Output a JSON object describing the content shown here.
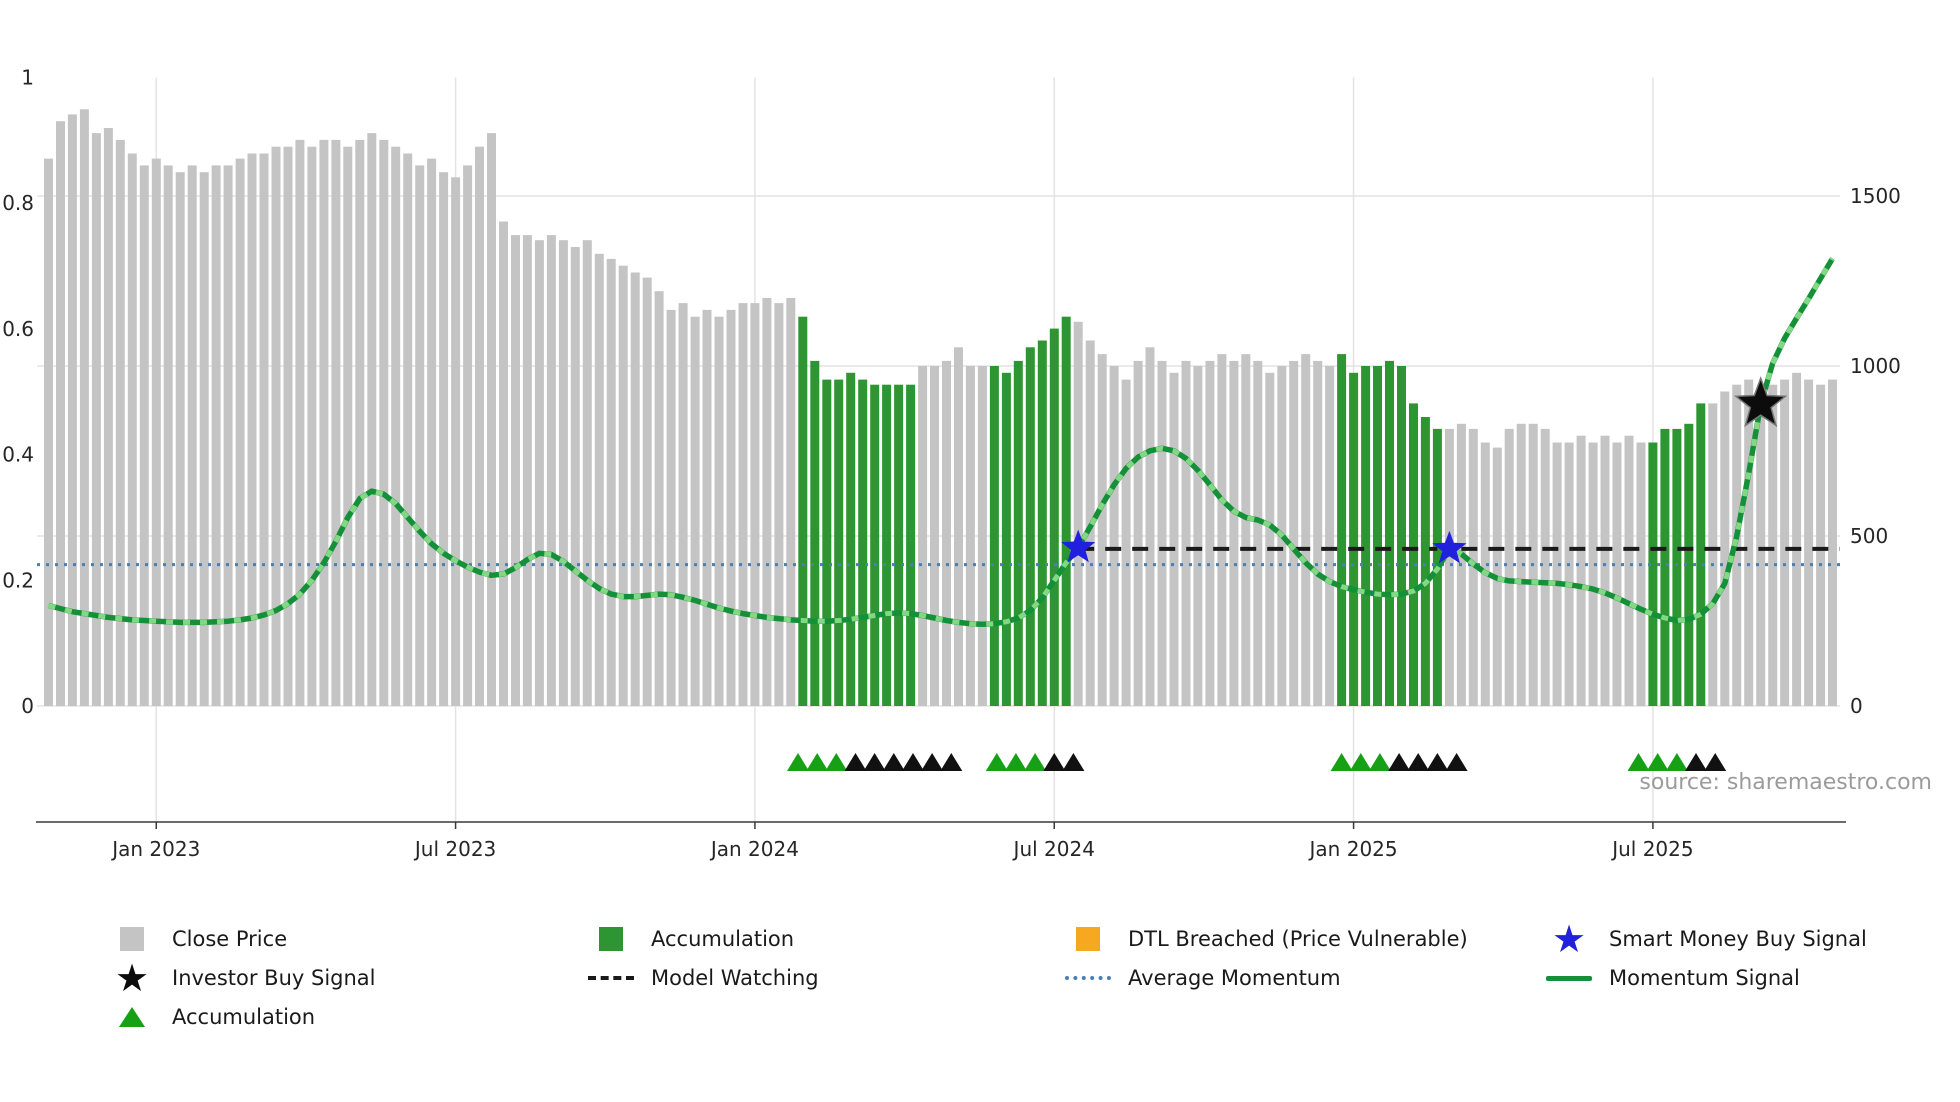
{
  "meta": {
    "source_credit": "source: sharemaestro.com"
  },
  "colors": {
    "bar_gray": "#c4c4c4",
    "accum_green": "#2d9632",
    "momentum_green": "#149039",
    "momentum_dash": "#84d884",
    "avg_blue": "#4a7fb5",
    "watch_black": "#1a1a1a",
    "star_blue": "#2121dd",
    "star_black": "#0c0c0c",
    "dtl_orange": "#f6a821",
    "marker_green": "#16a016",
    "marker_black": "#111111",
    "grid": "#e3e3e3",
    "axis_line": "#3a3a3a",
    "axis_text": "#262626",
    "source_gray": "#9b9b9b"
  },
  "chart_data": {
    "type": "bar+line",
    "n_points": 150,
    "x_ticks": [
      {
        "index": 9,
        "label": "Jan 2023"
      },
      {
        "index": 34,
        "label": "Jul 2023"
      },
      {
        "index": 59,
        "label": "Jan 2024"
      },
      {
        "index": 84,
        "label": "Jul 2024"
      },
      {
        "index": 109,
        "label": "Jan 2025"
      },
      {
        "index": 134,
        "label": "Jul 2025"
      }
    ],
    "left_axis": {
      "range": [
        0,
        1
      ],
      "ticks": [
        {
          "value": 0,
          "label": "0"
        },
        {
          "value": 0.2,
          "label": "0.2"
        },
        {
          "value": 0.4,
          "label": "0.4"
        },
        {
          "value": 0.6,
          "label": "0.6"
        },
        {
          "value": 0.8,
          "label": "0.8"
        },
        {
          "value": 1,
          "label": "1"
        }
      ]
    },
    "right_axis": {
      "range": [
        0,
        1870
      ],
      "ticks": [
        {
          "value": 0,
          "label": "0"
        },
        {
          "value": 500,
          "label": "500"
        },
        {
          "value": 1000,
          "label": "1000"
        },
        {
          "value": 1500,
          "label": "1500"
        }
      ]
    },
    "bars": {
      "name": "Close Price",
      "axis": "right",
      "values": [
        1610,
        1720,
        1740,
        1755,
        1685,
        1700,
        1665,
        1625,
        1590,
        1610,
        1590,
        1570,
        1590,
        1570,
        1590,
        1590,
        1610,
        1625,
        1625,
        1645,
        1645,
        1665,
        1645,
        1665,
        1665,
        1645,
        1665,
        1685,
        1665,
        1645,
        1625,
        1590,
        1610,
        1570,
        1555,
        1590,
        1645,
        1685,
        1425,
        1385,
        1385,
        1370,
        1385,
        1370,
        1350,
        1370,
        1330,
        1315,
        1295,
        1275,
        1260,
        1220,
        1165,
        1185,
        1145,
        1165,
        1145,
        1165,
        1185,
        1185,
        1200,
        1185,
        1200,
        1145,
        1015,
        960,
        960,
        980,
        960,
        945,
        945,
        945,
        945,
        1000,
        1000,
        1015,
        1055,
        1000,
        1000,
        1000,
        980,
        1015,
        1055,
        1075,
        1110,
        1145,
        1130,
        1075,
        1035,
        1000,
        960,
        1015,
        1055,
        1015,
        980,
        1015,
        1000,
        1015,
        1035,
        1015,
        1035,
        1015,
        980,
        1000,
        1015,
        1035,
        1015,
        1000,
        1035,
        980,
        1000,
        1000,
        1015,
        1000,
        890,
        850,
        815,
        815,
        830,
        815,
        775,
        760,
        815,
        830,
        830,
        815,
        775,
        775,
        795,
        775,
        795,
        775,
        795,
        775,
        775,
        815,
        815,
        830,
        890,
        890,
        925,
        945,
        960,
        925,
        945,
        960,
        980,
        960,
        945,
        960
      ]
    },
    "accumulation_ranges": [
      [
        63,
        72
      ],
      [
        79,
        85
      ],
      [
        108,
        116
      ],
      [
        134,
        138
      ]
    ],
    "momentum": {
      "name": "Momentum Signal",
      "axis": "left",
      "values": [
        0.16,
        0.155,
        0.15,
        0.147,
        0.144,
        0.141,
        0.139,
        0.137,
        0.136,
        0.135,
        0.134,
        0.133,
        0.133,
        0.133,
        0.134,
        0.135,
        0.137,
        0.14,
        0.145,
        0.152,
        0.163,
        0.178,
        0.2,
        0.228,
        0.262,
        0.3,
        0.33,
        0.342,
        0.337,
        0.322,
        0.3,
        0.278,
        0.258,
        0.243,
        0.231,
        0.221,
        0.213,
        0.208,
        0.21,
        0.22,
        0.233,
        0.243,
        0.241,
        0.23,
        0.215,
        0.2,
        0.187,
        0.178,
        0.174,
        0.174,
        0.176,
        0.178,
        0.177,
        0.173,
        0.168,
        0.162,
        0.156,
        0.151,
        0.147,
        0.144,
        0.141,
        0.139,
        0.137,
        0.136,
        0.135,
        0.135,
        0.136,
        0.138,
        0.141,
        0.144,
        0.147,
        0.148,
        0.147,
        0.144,
        0.14,
        0.136,
        0.133,
        0.131,
        0.13,
        0.131,
        0.134,
        0.14,
        0.152,
        0.172,
        0.2,
        0.228,
        0.252,
        0.285,
        0.32,
        0.352,
        0.378,
        0.396,
        0.406,
        0.41,
        0.406,
        0.394,
        0.375,
        0.352,
        0.328,
        0.31,
        0.3,
        0.296,
        0.288,
        0.272,
        0.25,
        0.228,
        0.21,
        0.198,
        0.19,
        0.185,
        0.181,
        0.178,
        0.177,
        0.178,
        0.183,
        0.195,
        0.218,
        0.25,
        0.242,
        0.226,
        0.212,
        0.203,
        0.199,
        0.198,
        0.197,
        0.196,
        0.195,
        0.193,
        0.19,
        0.186,
        0.18,
        0.172,
        0.163,
        0.154,
        0.146,
        0.14,
        0.136,
        0.138,
        0.146,
        0.163,
        0.195,
        0.27,
        0.37,
        0.48,
        0.545,
        0.585,
        0.617,
        0.648,
        0.68,
        0.712
      ]
    },
    "average_momentum": {
      "name": "Average Momentum",
      "value": 0.225
    },
    "model_watching": {
      "name": "Model Watching",
      "level": 0.25,
      "segments": [
        [
          86,
          116
        ],
        [
          118,
          149.6
        ]
      ]
    },
    "smart_money_signals": [
      {
        "index": 86,
        "value": 0.252
      },
      {
        "index": 117,
        "value": 0.25
      }
    ],
    "investor_buy_signal": {
      "index": 143,
      "value": 0.48
    },
    "accumulation_markers": [
      62.6,
      64.2,
      65.8,
      79.2,
      80.8,
      82.4,
      108,
      109.6,
      111.2,
      132.8,
      134.4,
      136
    ],
    "watching_markers": [
      67.4,
      69,
      70.6,
      72.2,
      73.8,
      75.4,
      84,
      85.6,
      112.8,
      114.4,
      116,
      117.6,
      137.6,
      139.2
    ]
  },
  "legend": {
    "items": [
      {
        "id": "close-price",
        "icon": "square",
        "color": "#c4c4c4",
        "label": "Close Price",
        "col": 0,
        "row": 0
      },
      {
        "id": "accumulation-bars",
        "icon": "square",
        "color": "#2d9632",
        "label": "Accumulation",
        "col": 1,
        "row": 0
      },
      {
        "id": "dtl-breached",
        "icon": "square",
        "color": "#f6a821",
        "label": "DTL Breached (Price Vulnerable)",
        "col": 2,
        "row": 0
      },
      {
        "id": "smart-money-signal",
        "icon": "star",
        "color": "#2121dd",
        "label": "Smart Money Buy Signal",
        "col": 3,
        "row": 0
      },
      {
        "id": "investor-buy-signal",
        "icon": "star",
        "color": "#0c0c0c",
        "label": "Investor Buy Signal",
        "col": 0,
        "row": 1
      },
      {
        "id": "model-watching",
        "icon": "dashed",
        "color": "#1a1a1a",
        "label": "Model Watching",
        "col": 1,
        "row": 1
      },
      {
        "id": "average-momentum",
        "icon": "dotted",
        "color": "#4a7fb5",
        "label": "Average Momentum",
        "col": 2,
        "row": 1
      },
      {
        "id": "momentum-signal",
        "icon": "line",
        "color": "#149039",
        "label": "Momentum Signal",
        "col": 3,
        "row": 1
      },
      {
        "id": "accumulation-marker",
        "icon": "triangle",
        "color": "#16a016",
        "label": "Accumulation",
        "col": 0,
        "row": 2
      }
    ]
  }
}
